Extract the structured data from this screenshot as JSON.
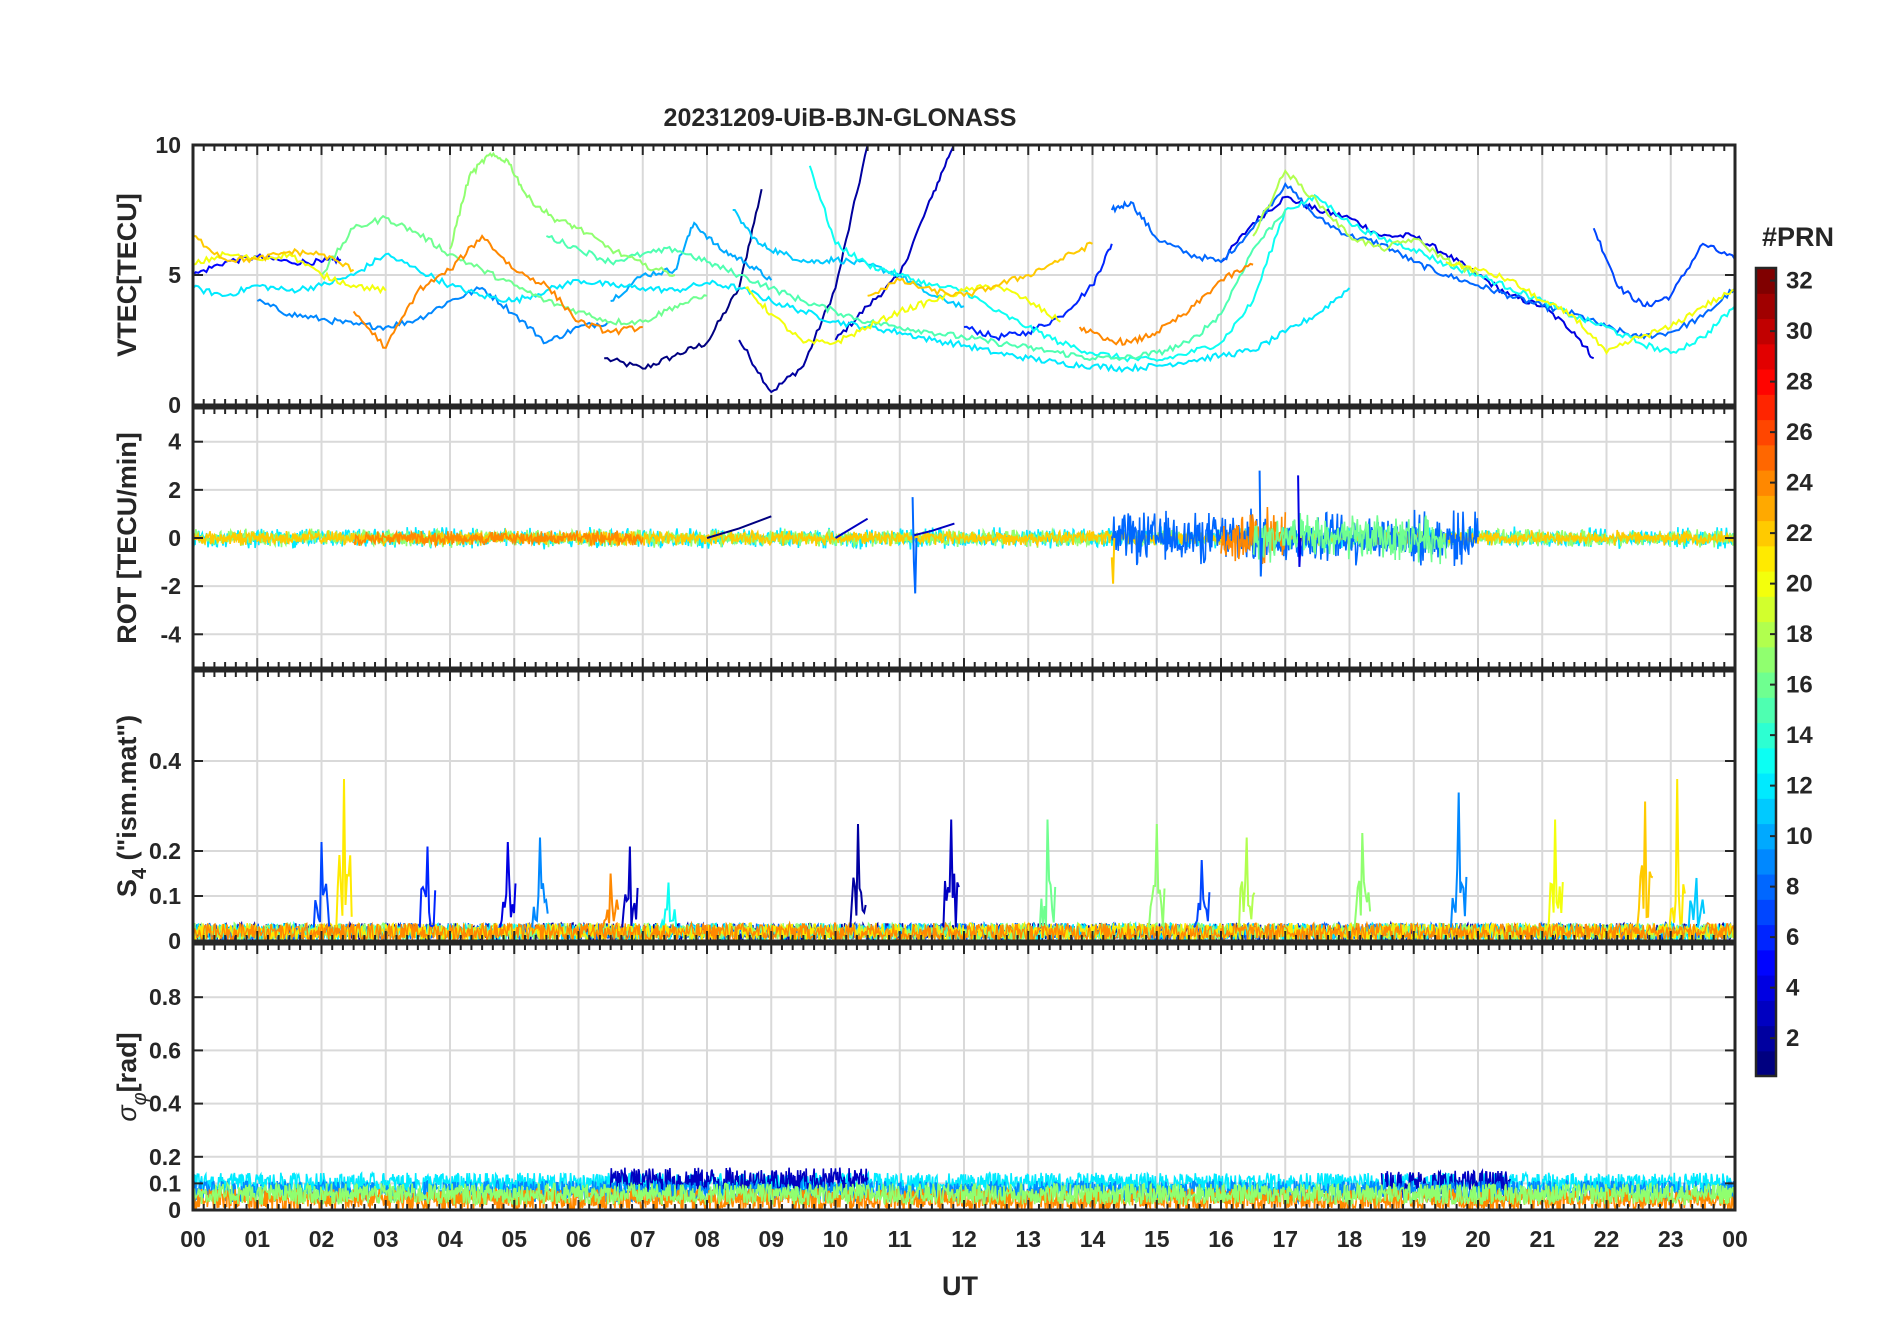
{
  "title": "20231209-UiB-BJN-GLONASS",
  "x_axis": {
    "label": "UT",
    "ticks": [
      "00",
      "01",
      "02",
      "03",
      "04",
      "05",
      "06",
      "07",
      "08",
      "09",
      "10",
      "11",
      "12",
      "13",
      "14",
      "15",
      "16",
      "17",
      "18",
      "19",
      "20",
      "21",
      "22",
      "23",
      "00"
    ],
    "range": [
      0,
      24
    ]
  },
  "colorbar": {
    "title": "#PRN",
    "range": [
      1,
      32
    ],
    "tick_labels": [
      "2",
      "4",
      "6",
      "8",
      "10",
      "12",
      "14",
      "16",
      "18",
      "20",
      "22",
      "24",
      "26",
      "28",
      "30",
      "32"
    ],
    "colormap": "jet"
  },
  "chart_data": [
    {
      "type": "line",
      "panel": "vtec",
      "ylabel": "VTEC[TECU]",
      "ylim": [
        0,
        10
      ],
      "yticks": [
        "0",
        "5",
        "10"
      ],
      "grid": true,
      "series": [
        {
          "prn": 1,
          "x": [
            6.4,
            7.0,
            7.5,
            8.0,
            8.5,
            8.85
          ],
          "values": [
            1.8,
            1.4,
            1.9,
            2.4,
            4.5,
            8.3
          ]
        },
        {
          "prn": 2,
          "x": [
            8.5,
            9.0,
            9.5,
            10.0,
            10.5
          ],
          "values": [
            2.5,
            0.5,
            1.5,
            4.5,
            10.0
          ]
        },
        {
          "prn": 3,
          "x": [
            10.0,
            10.5,
            11.0,
            11.5,
            11.85
          ],
          "values": [
            2.5,
            3.8,
            5.0,
            8.0,
            10.1
          ]
        },
        {
          "prn": 4,
          "x": [
            16.0,
            16.5,
            17.0,
            17.5,
            18.0,
            18.5,
            19.0,
            19.5,
            20.0,
            20.5,
            21.0,
            21.5,
            21.8
          ],
          "values": [
            5.5,
            7.0,
            8.0,
            7.5,
            7.2,
            6.5,
            6.5,
            5.8,
            5.0,
            4.2,
            3.8,
            2.8,
            1.8
          ]
        },
        {
          "prn": 5,
          "x": [
            0.0,
            0.5,
            1.0,
            1.5,
            2.0,
            2.3
          ],
          "values": [
            5.0,
            5.5,
            5.7,
            5.5,
            5.5,
            5.6
          ]
        },
        {
          "prn": 6,
          "x": [
            12.0,
            12.5,
            13.0,
            13.5,
            14.0,
            14.3
          ],
          "values": [
            3.0,
            2.6,
            2.8,
            3.4,
            4.6,
            6.2
          ]
        },
        {
          "prn": 7,
          "x": [
            21.8,
            22.2,
            22.6,
            23.0,
            23.5,
            24.0
          ],
          "values": [
            6.8,
            4.5,
            3.8,
            4.2,
            6.2,
            5.6
          ]
        },
        {
          "prn": 8,
          "x": [
            14.3,
            14.6,
            15.0,
            15.5,
            16.0,
            16.5,
            17.0,
            17.5,
            18.0,
            18.5,
            19.0,
            19.5,
            20.0,
            20.5,
            21.0,
            21.5,
            22.0,
            22.5,
            23.0,
            23.5,
            24.0
          ],
          "values": [
            7.5,
            7.8,
            6.4,
            5.8,
            5.5,
            6.8,
            8.5,
            7.2,
            6.5,
            6.2,
            5.5,
            5.0,
            4.6,
            4.2,
            3.8,
            3.5,
            3.0,
            2.6,
            2.8,
            3.4,
            4.5
          ]
        },
        {
          "prn": 9,
          "x": [
            1.0,
            1.5,
            2.0,
            2.5,
            3.0,
            3.5,
            4.0,
            4.5,
            5.0,
            5.5,
            6.0,
            6.5
          ],
          "values": [
            4.0,
            3.5,
            3.3,
            3.1,
            3.0,
            3.3,
            4.0,
            4.5,
            3.5,
            2.4,
            3.0,
            3.2
          ]
        },
        {
          "prn": 10,
          "x": [
            6.5,
            7.0,
            7.5,
            7.8,
            8.2,
            8.6,
            9.0
          ],
          "values": [
            4.0,
            5.0,
            5.2,
            7.0,
            6.0,
            5.5,
            4.8
          ]
        },
        {
          "prn": 11,
          "x": [
            8.4,
            8.8,
            9.2,
            9.6,
            10.0,
            10.5,
            11.0,
            11.5,
            12.0
          ],
          "values": [
            7.5,
            6.2,
            5.8,
            5.5,
            5.6,
            5.4,
            5.0,
            4.2,
            3.8
          ]
        },
        {
          "prn": 12,
          "x": [
            0.0,
            0.5,
            1.0,
            1.5,
            2.0,
            2.5,
            3.0,
            3.5,
            4.0,
            4.5,
            5.0,
            5.5,
            6.0,
            6.5,
            7.0,
            7.5,
            8.0,
            8.5,
            9.0,
            9.5,
            10.0,
            10.5,
            11.0,
            11.5,
            12.0,
            12.5,
            13.0,
            13.5,
            14.0,
            14.5,
            15.0,
            15.5,
            16.0,
            16.5,
            17.0,
            17.5,
            18.0
          ],
          "values": [
            4.5,
            4.2,
            4.6,
            4.4,
            4.6,
            5.0,
            5.8,
            5.2,
            4.6,
            4.2,
            4.0,
            4.4,
            4.8,
            4.6,
            4.5,
            4.4,
            4.7,
            4.5,
            4.0,
            3.6,
            3.2,
            3.0,
            2.8,
            2.5,
            2.3,
            2.0,
            1.8,
            1.6,
            1.5,
            1.4,
            1.5,
            1.7,
            1.9,
            2.1,
            2.8,
            3.5,
            4.5
          ]
        },
        {
          "prn": 13,
          "x": [
            9.6,
            10.0,
            10.5,
            11.0,
            11.5,
            12.0,
            12.5,
            13.0,
            13.5,
            14.0,
            14.5,
            15.0,
            15.5,
            16.0,
            16.5,
            17.0,
            17.5,
            18.0,
            18.5,
            19.0,
            19.5,
            20.0,
            20.5,
            21.0,
            21.5,
            22.0,
            22.5,
            23.0,
            23.5,
            24.0
          ],
          "values": [
            9.2,
            6.2,
            5.4,
            5.0,
            4.6,
            4.4,
            3.6,
            3.0,
            2.4,
            2.0,
            1.8,
            1.7,
            2.0,
            2.4,
            4.0,
            7.5,
            8.0,
            7.0,
            6.4,
            6.0,
            5.4,
            5.0,
            4.5,
            4.0,
            3.4,
            3.0,
            2.4,
            2.0,
            2.6,
            3.8
          ]
        },
        {
          "prn": 15,
          "x": [
            5.5,
            6.0,
            6.5,
            7.0,
            7.5,
            8.0,
            8.5,
            9.0,
            9.5,
            10.0,
            10.5,
            11.0,
            11.5,
            12.0,
            12.5,
            13.0,
            13.5,
            14.0,
            14.5,
            15.0,
            15.5,
            16.0,
            16.5,
            17.0
          ],
          "values": [
            6.5,
            6.0,
            5.5,
            5.8,
            6.0,
            5.5,
            5.0,
            4.5,
            4.0,
            3.6,
            3.2,
            3.0,
            2.8,
            2.6,
            2.4,
            2.2,
            2.0,
            1.8,
            1.8,
            2.0,
            2.4,
            3.5,
            6.0,
            7.5
          ]
        },
        {
          "prn": 16,
          "x": [
            2.0,
            2.5,
            3.0,
            3.5,
            4.0,
            4.5,
            5.0,
            5.5,
            6.0,
            6.5,
            7.0,
            7.5,
            8.0
          ],
          "values": [
            5.0,
            6.8,
            7.2,
            6.6,
            5.8,
            5.2,
            4.6,
            4.0,
            3.6,
            3.2,
            3.2,
            3.8,
            4.2
          ]
        },
        {
          "prn": 17,
          "x": [
            4.0,
            4.3,
            4.6,
            4.9,
            5.2,
            5.6,
            6.0,
            6.5,
            7.0,
            7.5
          ],
          "values": [
            6.0,
            8.8,
            9.6,
            9.4,
            8.0,
            7.2,
            6.8,
            6.0,
            5.4,
            5.0
          ]
        },
        {
          "prn": 18,
          "x": [
            16.5,
            17.0,
            17.5,
            18.0,
            18.5,
            19.0,
            19.5,
            20.0
          ],
          "values": [
            6.5,
            9.0,
            7.8,
            6.5,
            6.0,
            6.4,
            5.6,
            5.0
          ]
        },
        {
          "prn": 20,
          "x": [
            0.0,
            0.5,
            1.0,
            1.5,
            2.0,
            2.5,
            3.0
          ],
          "values": [
            5.4,
            5.8,
            5.6,
            5.8,
            5.0,
            4.6,
            4.4
          ]
        },
        {
          "prn": 20,
          "x": [
            8.6,
            9.0,
            9.5,
            10.0,
            10.5,
            11.0,
            11.5,
            12.0,
            12.5,
            13.0,
            13.5
          ],
          "values": [
            4.5,
            3.5,
            2.4,
            2.4,
            3.0,
            3.6,
            4.0,
            4.4,
            4.6,
            4.0,
            3.2
          ]
        },
        {
          "prn": 20,
          "x": [
            19.5,
            20.0,
            20.5,
            21.0,
            21.5,
            22.0,
            22.5,
            23.0,
            23.5,
            24.0
          ],
          "values": [
            5.5,
            5.2,
            4.8,
            4.0,
            3.4,
            2.0,
            2.6,
            3.0,
            3.8,
            4.4
          ]
        },
        {
          "prn": 22,
          "x": [
            0.0,
            0.5,
            1.0,
            1.5,
            2.0,
            2.5
          ],
          "values": [
            6.5,
            5.6,
            5.6,
            5.9,
            5.8,
            5.2
          ]
        },
        {
          "prn": 22,
          "x": [
            10.5,
            11.0,
            11.5,
            12.0,
            12.5,
            13.0,
            13.5,
            14.0
          ],
          "values": [
            4.2,
            4.8,
            4.4,
            4.2,
            4.6,
            5.0,
            5.6,
            6.2
          ]
        },
        {
          "prn": 24,
          "x": [
            2.5,
            3.0,
            3.5,
            4.0,
            4.5,
            5.0,
            5.5,
            6.0,
            6.5,
            7.0
          ],
          "values": [
            3.6,
            2.2,
            4.4,
            5.2,
            6.5,
            5.2,
            4.6,
            3.2,
            2.8,
            3.0
          ]
        },
        {
          "prn": 24,
          "x": [
            13.8,
            14.2,
            14.6,
            15.0,
            15.5,
            16.0,
            16.5
          ],
          "values": [
            3.0,
            2.5,
            2.4,
            2.8,
            3.6,
            4.8,
            5.4
          ]
        }
      ]
    },
    {
      "type": "line",
      "panel": "rot",
      "ylabel": "ROT [TECU/min]",
      "ylim": [
        -5.4,
        5.4
      ],
      "yticks": [
        "-4",
        "-2",
        "0",
        "2",
        "4"
      ],
      "grid": true,
      "noise_bands": [
        {
          "prn": 12,
          "x": [
            0.0,
            24.0
          ],
          "amplitude": 0.35
        },
        {
          "prn": 17,
          "x": [
            0.0,
            24.0
          ],
          "amplitude": 0.3
        },
        {
          "prn": 22,
          "x": [
            0.0,
            24.0
          ],
          "amplitude": 0.25
        },
        {
          "prn": 24,
          "x": [
            2.5,
            7.0
          ],
          "amplitude": 0.25
        },
        {
          "prn": 8,
          "x": [
            14.3,
            20.0
          ],
          "amplitude": 0.9
        },
        {
          "prn": 24,
          "x": [
            16.0,
            17.0
          ],
          "amplitude": 1.0
        },
        {
          "prn": 16,
          "x": [
            16.5,
            19.5
          ],
          "amplitude": 0.8
        }
      ],
      "series": [
        {
          "prn": 1,
          "x": [
            8.0,
            8.5,
            9.0
          ],
          "values": [
            0.0,
            0.4,
            0.9
          ]
        },
        {
          "prn": 3,
          "x": [
            10.0,
            10.5
          ],
          "values": [
            0.0,
            0.8
          ]
        },
        {
          "prn": 3,
          "x": [
            11.2,
            11.5,
            11.85
          ],
          "values": [
            0.1,
            0.3,
            0.6
          ]
        },
        {
          "prn": 8,
          "x": [
            11.2,
            11.22,
            11.24,
            11.26
          ],
          "values": [
            1.7,
            -1.0,
            -2.3,
            0.0
          ]
        },
        {
          "prn": 8,
          "x": [
            16.6,
            16.62,
            16.64
          ],
          "values": [
            2.8,
            -1.6,
            0.0
          ]
        },
        {
          "prn": 4,
          "x": [
            17.2,
            17.22,
            17.24
          ],
          "values": [
            2.6,
            -1.2,
            0.0
          ]
        },
        {
          "prn": 22,
          "x": [
            14.3,
            14.32,
            14.34
          ],
          "values": [
            -0.8,
            -1.9,
            0.0
          ]
        }
      ]
    },
    {
      "type": "line",
      "panel": "s4",
      "ylabel": "S4 (\"ism.mat\")",
      "ylim": [
        0,
        0.6
      ],
      "yticks": [
        "0",
        "0.1",
        "0.2",
        "0.4"
      ],
      "grid": true,
      "baseline_noise": {
        "level": 0.02,
        "amplitude": 0.04
      },
      "spikes": [
        {
          "prn": 21,
          "x": 2.35,
          "value": 0.36
        },
        {
          "prn": 7,
          "x": 2.0,
          "value": 0.22
        },
        {
          "prn": 6,
          "x": 3.65,
          "value": 0.21
        },
        {
          "prn": 4,
          "x": 4.9,
          "value": 0.22
        },
        {
          "prn": 9,
          "x": 5.4,
          "value": 0.23
        },
        {
          "prn": 3,
          "x": 6.8,
          "value": 0.21
        },
        {
          "prn": 24,
          "x": 6.5,
          "value": 0.15
        },
        {
          "prn": 13,
          "x": 7.4,
          "value": 0.13
        },
        {
          "prn": 2,
          "x": 10.35,
          "value": 0.26
        },
        {
          "prn": 3,
          "x": 11.8,
          "value": 0.27
        },
        {
          "prn": 16,
          "x": 13.3,
          "value": 0.27
        },
        {
          "prn": 17,
          "x": 15.0,
          "value": 0.26
        },
        {
          "prn": 7,
          "x": 15.7,
          "value": 0.18
        },
        {
          "prn": 18,
          "x": 16.4,
          "value": 0.23
        },
        {
          "prn": 17,
          "x": 18.2,
          "value": 0.24
        },
        {
          "prn": 9,
          "x": 19.7,
          "value": 0.33
        },
        {
          "prn": 20,
          "x": 21.2,
          "value": 0.27
        },
        {
          "prn": 22,
          "x": 22.6,
          "value": 0.31
        },
        {
          "prn": 21,
          "x": 23.1,
          "value": 0.36
        },
        {
          "prn": 11,
          "x": 23.4,
          "value": 0.14
        }
      ]
    },
    {
      "type": "line",
      "panel": "sigma_phi",
      "ylabel": "σφ[rad]",
      "ylim": [
        0,
        1
      ],
      "yticks": [
        "0",
        "0.1",
        "0.2",
        "0.4",
        "0.6",
        "0.8"
      ],
      "grid": true,
      "bands": [
        {
          "prn": 12,
          "x": [
            0.0,
            24.0
          ],
          "level": 0.1,
          "amplitude": 0.04
        },
        {
          "prn": 3,
          "x": [
            6.5,
            10.5
          ],
          "level": 0.11,
          "amplitude": 0.05
        },
        {
          "prn": 3,
          "x": [
            18.5,
            20.5
          ],
          "level": 0.1,
          "amplitude": 0.05
        },
        {
          "prn": 9,
          "x": [
            0.0,
            24.0
          ],
          "level": 0.07,
          "amplitude": 0.04
        },
        {
          "prn": 24,
          "x": [
            0.0,
            24.0
          ],
          "level": 0.04,
          "amplitude": 0.04
        },
        {
          "prn": 17,
          "x": [
            0.0,
            24.0
          ],
          "level": 0.06,
          "amplitude": 0.04
        }
      ]
    }
  ]
}
